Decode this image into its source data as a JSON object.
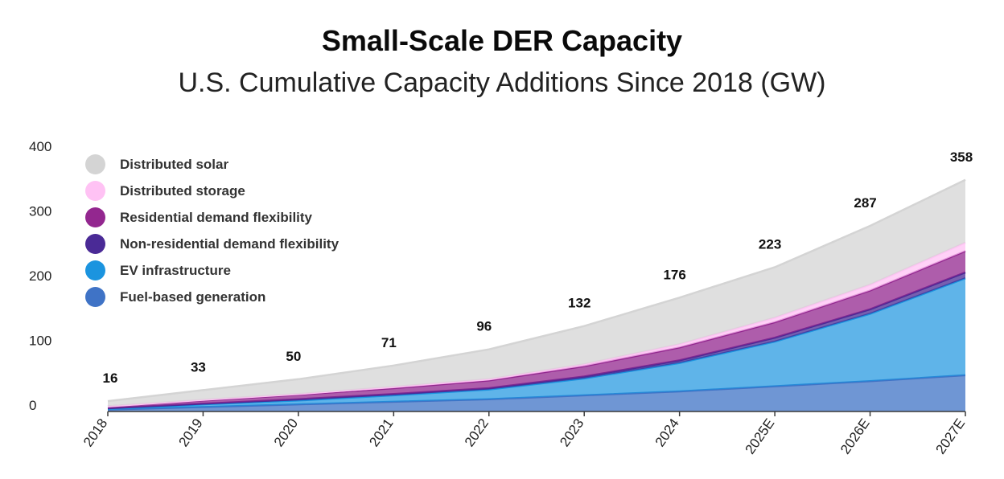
{
  "header": {
    "title": "Small-Scale DER Capacity",
    "subtitle": "U.S. Cumulative Capacity Additions Since 2018 (GW)"
  },
  "chart_data": {
    "type": "area",
    "stacked": true,
    "title": "Small-Scale DER Capacity",
    "subtitle": "U.S. Cumulative Capacity Additions Since 2018 (GW)",
    "xlabel": "",
    "ylabel": "",
    "categories": [
      "2018",
      "2019",
      "2020",
      "2021",
      "2022",
      "2023",
      "2024",
      "2025E",
      "2026E",
      "2027E"
    ],
    "ylim": [
      0,
      400
    ],
    "yticks": [
      "0",
      "100",
      "200",
      "300",
      "400"
    ],
    "grid": false,
    "legend_position": "top-left",
    "series": [
      {
        "name": "Fuel-based generation",
        "color": "#3f73c6",
        "values": [
          3,
          7,
          11,
          15,
          19,
          25,
          31,
          39,
          47,
          56
        ]
      },
      {
        "name": "EV infrastructure",
        "color": "#1b94df",
        "values": [
          1,
          4,
          6,
          10,
          15,
          26,
          44,
          69,
          104,
          150
        ]
      },
      {
        "name": "Non-residential demand flexibility",
        "color": "#4a2a96",
        "values": [
          1,
          1,
          2,
          2,
          2,
          3,
          4,
          6,
          7,
          9
        ]
      },
      {
        "name": "Residential demand flexibility",
        "color": "#93278f",
        "values": [
          3,
          5,
          7,
          9,
          12,
          16,
          20,
          24,
          29,
          33
        ]
      },
      {
        "name": "Distributed storage",
        "color": "#ffc2f4",
        "values": [
          0,
          1,
          1,
          2,
          2,
          3,
          5,
          7,
          9,
          13
        ]
      },
      {
        "name": "Distributed solar",
        "color": "#d4d4d4",
        "values": [
          8,
          15,
          23,
          33,
          46,
          59,
          72,
          78,
          91,
          97
        ]
      }
    ],
    "totals": [
      16,
      33,
      50,
      71,
      96,
      132,
      176,
      223,
      287,
      358
    ],
    "total_labels": [
      "16",
      "33",
      "50",
      "71",
      "96",
      "132",
      "176",
      "223",
      "287",
      "358"
    ]
  }
}
